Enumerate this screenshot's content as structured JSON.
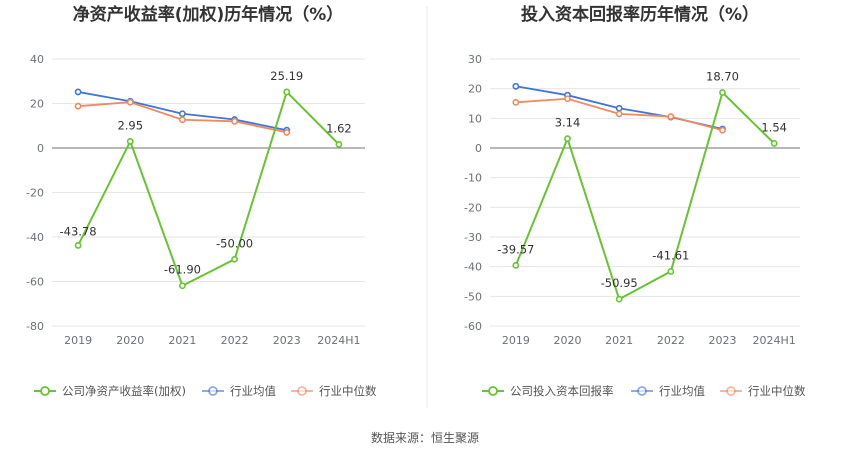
{
  "source_label": "数据来源：恒生聚源",
  "colors": {
    "company": "#66c52e",
    "industry_avg": "#3f76d6",
    "industry_median": "#f08a5d",
    "grid": "#e6e6e6",
    "divider": "#e8e8e8"
  },
  "chart_data": [
    {
      "type": "line",
      "title": "净资产收益率(加权)历年情况（%）",
      "categories": [
        "2019",
        "2020",
        "2021",
        "2022",
        "2023",
        "2024H1"
      ],
      "ylim": [
        -80,
        40
      ],
      "yticks": [
        40,
        20,
        0,
        -20,
        -40,
        -60,
        -80
      ],
      "grid": true,
      "legend_position": "bottom",
      "series": [
        {
          "name": "公司净资产收益率(加权)",
          "key": "company",
          "values": [
            -43.78,
            2.95,
            -61.9,
            -50.0,
            25.19,
            1.62
          ],
          "labels": [
            "-43.78",
            "2.95",
            "-61.90",
            "-50.00",
            "25.19",
            "1.62"
          ]
        },
        {
          "name": "行业均值",
          "key": "industry_avg",
          "values": [
            25.2,
            21.0,
            15.4,
            12.8,
            8.0,
            null
          ]
        },
        {
          "name": "行业中位数",
          "key": "industry_median",
          "values": [
            18.8,
            20.6,
            12.7,
            12.0,
            7.0,
            null
          ]
        }
      ]
    },
    {
      "type": "line",
      "title": "投入资本回报率历年情况（%）",
      "categories": [
        "2019",
        "2020",
        "2021",
        "2022",
        "2023",
        "2024H1"
      ],
      "ylim": [
        -60,
        30
      ],
      "yticks": [
        30,
        20,
        10,
        0,
        -10,
        -20,
        -30,
        -40,
        -50,
        -60
      ],
      "grid": true,
      "legend_position": "bottom",
      "series": [
        {
          "name": "公司投入资本回报率",
          "key": "company",
          "values": [
            -39.57,
            3.14,
            -50.95,
            -41.61,
            18.7,
            1.54
          ],
          "labels": [
            "-39.57",
            "3.14",
            "-50.95",
            "-41.61",
            "18.70",
            "1.54"
          ]
        },
        {
          "name": "行业均值",
          "key": "industry_avg",
          "values": [
            20.8,
            17.8,
            13.4,
            10.4,
            6.4,
            null
          ]
        },
        {
          "name": "行业中位数",
          "key": "industry_median",
          "values": [
            15.4,
            16.6,
            11.5,
            10.6,
            6.0,
            null
          ]
        }
      ]
    }
  ]
}
